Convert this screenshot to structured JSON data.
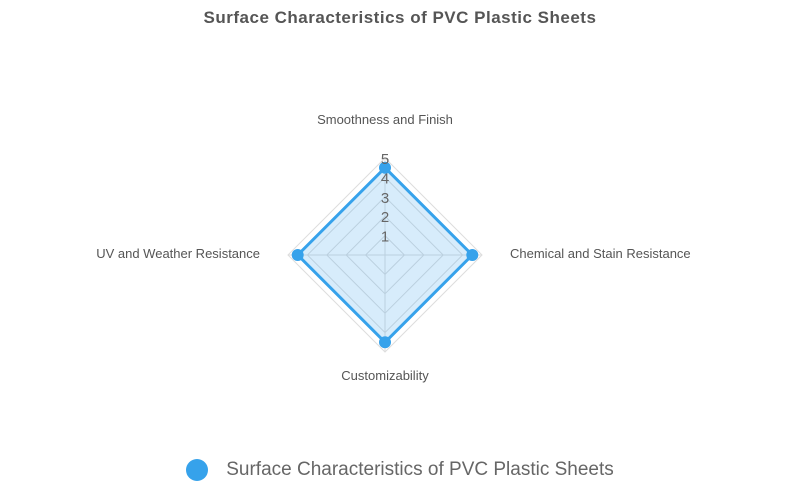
{
  "chart_data": {
    "type": "radar",
    "title": "Surface Characteristics of PVC Plastic Sheets",
    "axes": [
      "Smoothness and Finish",
      "Chemical and Stain Resistance",
      "Customizability",
      "UV and Weather Resistance"
    ],
    "ticks": [
      "1",
      "2",
      "3",
      "4",
      "5"
    ],
    "range": [
      0,
      5
    ],
    "series": [
      {
        "name": "Surface Characteristics of PVC Plastic Sheets",
        "values": [
          4.5,
          4.5,
          4.5,
          4.5
        ],
        "color": "#36a2eb",
        "fill": "rgba(54,162,235,0.2)"
      }
    ],
    "legend_position": "bottom"
  }
}
